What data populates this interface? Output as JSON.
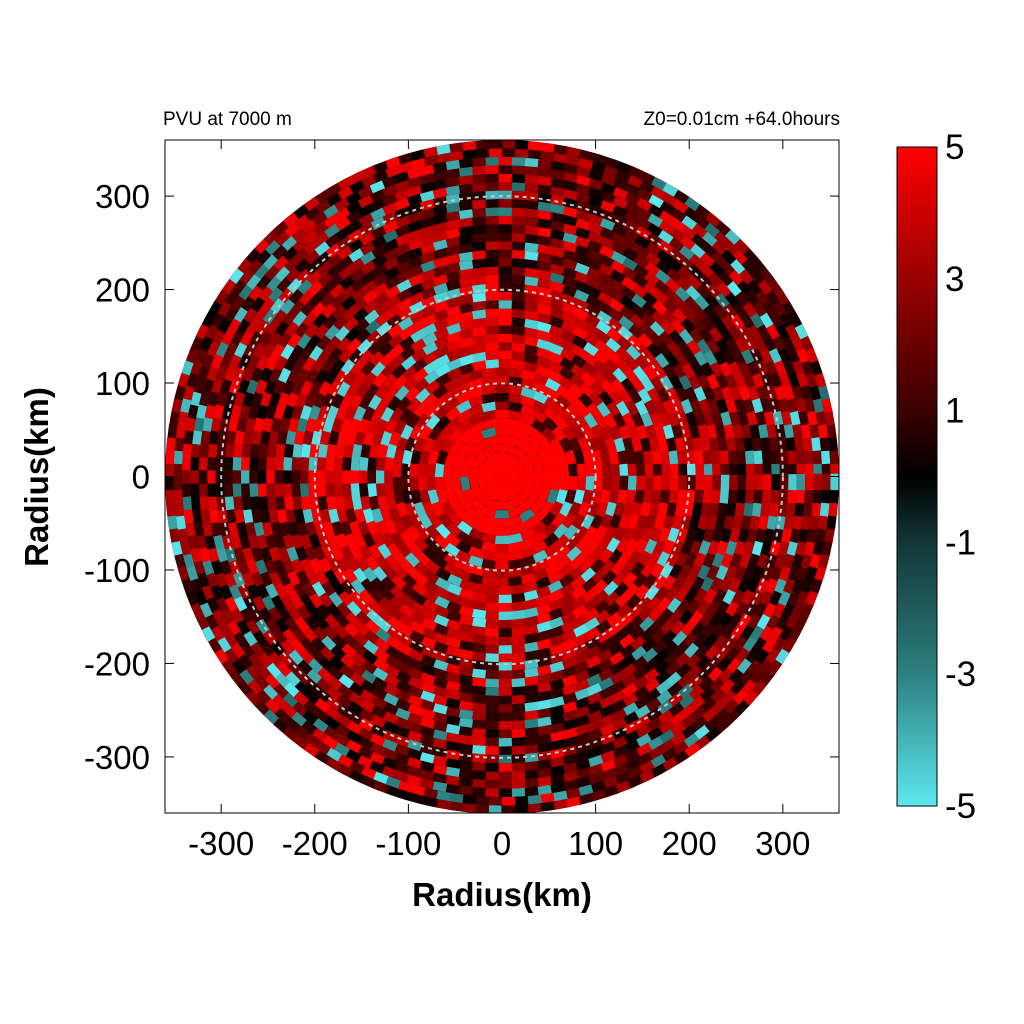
{
  "chart_data": {
    "type": "heatmap",
    "title_left": "PVU at  7000 m",
    "title_right": "Z0=0.01cm  +64.0hours",
    "xlabel": "Radius(km)",
    "ylabel": "Radius(km)",
    "xlim": [
      -360,
      360
    ],
    "ylim": [
      -360,
      360
    ],
    "xticks": [
      -300,
      -200,
      -100,
      0,
      100,
      200,
      300
    ],
    "yticks": [
      300,
      200,
      100,
      0,
      -100,
      -200,
      -300
    ],
    "domain_radius_km": 360,
    "reference_circles_km": [
      100,
      200,
      300
    ],
    "colorbar": {
      "min": -5,
      "max": 5,
      "ticks": [
        5,
        3,
        1,
        -1,
        -3,
        -5
      ],
      "stops": [
        {
          "value": -5,
          "color": "#5ce8ef"
        },
        {
          "value": -3,
          "color": "#2d8080"
        },
        {
          "value": -1,
          "color": "#133637"
        },
        {
          "value": 0,
          "color": "#000000"
        },
        {
          "value": 1,
          "color": "#3a0000"
        },
        {
          "value": 3,
          "color": "#9a0000"
        },
        {
          "value": 5,
          "color": "#ff0000"
        }
      ]
    },
    "field_description_values": {
      "core_radius_km": 60,
      "core_value": 5,
      "inner_band_km": [
        60,
        200
      ],
      "inner_band_mean": 3.5,
      "outer_band_km": [
        200,
        360
      ],
      "outer_band_mean": 1.5
    }
  }
}
